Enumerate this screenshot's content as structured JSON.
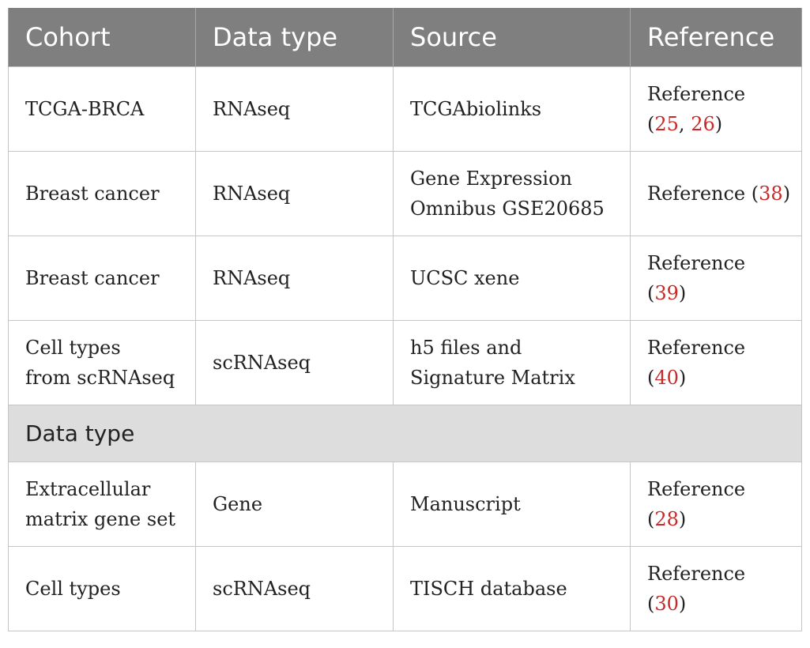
{
  "headers": [
    "Cohort",
    "Data type",
    "Source",
    "Reference"
  ],
  "rows": [
    {
      "cohort": [
        "TCGA-BRCA"
      ],
      "data_type": "RNAseq",
      "source": [
        "TCGAbiolinks"
      ],
      "ref_prefix": "Reference",
      "refs": [
        "25",
        "26"
      ]
    },
    {
      "cohort": [
        "Breast cancer"
      ],
      "data_type": "RNAseq",
      "source": [
        "Gene Expression",
        "Omnibus GSE20685"
      ],
      "ref_prefix": "Reference",
      "refs": [
        "38"
      ]
    },
    {
      "cohort": [
        "Breast cancer"
      ],
      "data_type": "RNAseq",
      "source": [
        "UCSC xene"
      ],
      "ref_prefix": "Reference",
      "refs": [
        "39"
      ]
    },
    {
      "cohort": [
        "Cell types",
        "from scRNAseq"
      ],
      "data_type": "scRNAseq",
      "source": [
        "h5 files and",
        "Signature Matrix"
      ],
      "ref_prefix": "Reference",
      "refs": [
        "40"
      ]
    }
  ],
  "section_label": "Data type",
  "rows2": [
    {
      "cohort": [
        "Extracellular",
        "matrix gene set"
      ],
      "data_type": "Gene",
      "source": [
        "Manuscript"
      ],
      "ref_prefix": "Reference",
      "refs": [
        "28"
      ]
    },
    {
      "cohort": [
        "Cell types"
      ],
      "data_type": "scRNAseq",
      "source": [
        "TISCH database"
      ],
      "ref_prefix": "Reference",
      "refs": [
        "30"
      ]
    }
  ]
}
